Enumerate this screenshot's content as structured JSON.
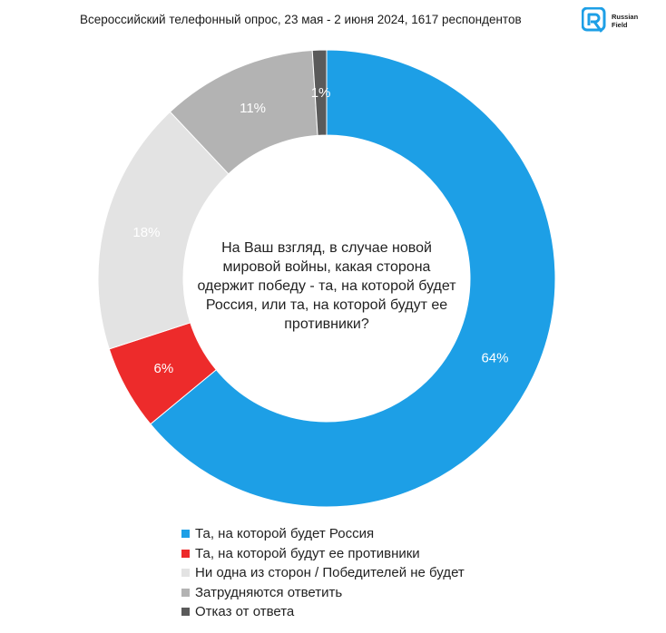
{
  "header": {
    "title": "Всероссийский телефонный опрос, 23 мая - 2 июня 2024, 1617 респондентов",
    "logo_text": "Russian\nField"
  },
  "chart_data": {
    "type": "pie",
    "donut": true,
    "center_text": "На Ваш взгляд, в случае новой мировой войны, какая сторона одержит победу - та, на которой будет Россия, или та, на которой будут ее противники?",
    "slices": [
      {
        "label": "Та, на которой будет Россия",
        "value": 64,
        "display": "64%",
        "color": "#1d9fe6"
      },
      {
        "label": "Та, на которой будут ее противники",
        "value": 6,
        "display": "6%",
        "color": "#ed2b2b"
      },
      {
        "label": "Ни одна из сторон / Победителей не будет",
        "value": 18,
        "display": "18%",
        "color": "#e3e3e3"
      },
      {
        "label": "Затрудняются ответить",
        "value": 11,
        "display": "11%",
        "color": "#b3b3b3"
      },
      {
        "label": "Отказ от ответа",
        "value": 1,
        "display": "1%",
        "color": "#5a5a5a"
      }
    ],
    "legend_position": "bottom"
  }
}
